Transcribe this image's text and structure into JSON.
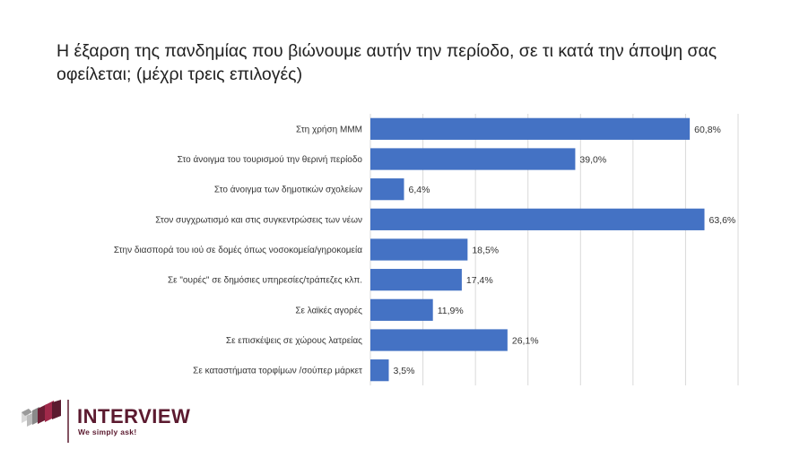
{
  "title": "Η έξαρση της πανδημίας που βιώνουμε αυτήν την περίοδο, σε τι κατά την άποψη σας οφείλεται; (μέχρι τρεις επιλογές)",
  "chart_data": {
    "type": "bar",
    "orientation": "horizontal",
    "categories": [
      "Στη χρήση ΜΜΜ",
      "Στο άνοιγμα του τουρισμού την θερινή περίοδο",
      "Στο άνοιγμα των δημοτικών σχολείων",
      "Στον συγχρωτισμό και στις συγκεντρώσεις των νέων",
      "Στην διασπορά του ιού σε δομές όπως νοσοκομεία/γηροκομεία",
      "Σε \"ουρές\" σε δημόσιες υπηρεσίες/τράπεζες κλπ.",
      "Σε λαϊκές αγορές",
      "Σε επισκέψεις σε χώρους λατρείας",
      "Σε καταστήματα τορφίμων /σούπερ μάρκετ"
    ],
    "values": [
      60.8,
      39.0,
      6.4,
      63.6,
      18.5,
      17.4,
      11.9,
      26.1,
      3.5
    ],
    "value_labels": [
      "60,8%",
      "39,0%",
      "6,4%",
      "63,6%",
      "18,5%",
      "17,4%",
      "11,9%",
      "26,1%",
      "3,5%"
    ],
    "xlim": [
      0,
      70
    ],
    "grid": true,
    "bar_color": "#4472C4",
    "gridline_color": "#D9D9D9"
  },
  "logo": {
    "name": "INTERVIEW",
    "tagline": "We simply ask!",
    "color": "#5B1A2F"
  }
}
